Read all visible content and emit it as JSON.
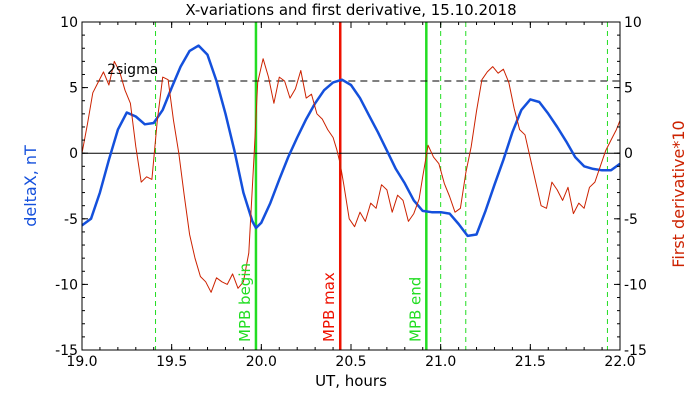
{
  "chart_data": {
    "type": "line",
    "title": "X-variations and first derivative, 15.10.2018",
    "xlabel": "UT, hours",
    "ylabel_left": "deltaX, nT",
    "ylabel_right": "First derivative*10",
    "xlim": [
      19.0,
      22.0
    ],
    "ylim_left": [
      -15,
      10
    ],
    "ylim_right": [
      -15,
      10
    ],
    "x_ticks": [
      19.0,
      19.5,
      20.0,
      20.5,
      21.0,
      21.5,
      22.0
    ],
    "x_tick_labels": [
      "19.0",
      "19.5",
      "20.0",
      "20.5",
      "21.0",
      "21.5",
      "22.0"
    ],
    "y_ticks": [
      10,
      5,
      0,
      -5,
      -10,
      -15
    ],
    "y_tick_labels": [
      "10",
      "5",
      "0",
      "-5",
      "-10",
      "-15"
    ],
    "grid": false,
    "colors": {
      "deltaX": "#1450dc",
      "derivative": "#cc2200",
      "mpb_begin": "#22dd22",
      "mpb_max": "#ee1100",
      "mpb_end": "#22dd22",
      "dashed_markers": "#22dd22",
      "zero_line": "#000000",
      "sigma_line": "#000000"
    },
    "sigma_label": "2sigma",
    "sigma_level": 5.5,
    "zero_level": 0,
    "markers": [
      {
        "label": "MPB begin",
        "x": 19.97,
        "color": "#22dd22"
      },
      {
        "label": "MPB max",
        "x": 20.44,
        "color": "#ee1100"
      },
      {
        "label": "MPB end",
        "x": 20.92,
        "color": "#22dd22"
      }
    ],
    "dashed_verticals": [
      19.41,
      21.0,
      21.14,
      21.93
    ],
    "series": [
      {
        "key": "deltaX",
        "axis": "left",
        "x": [
          19.0,
          19.05,
          19.1,
          19.15,
          19.2,
          19.25,
          19.3,
          19.35,
          19.4,
          19.45,
          19.5,
          19.55,
          19.6,
          19.65,
          19.7,
          19.75,
          19.8,
          19.85,
          19.9,
          19.95,
          19.97,
          20.0,
          20.05,
          20.1,
          20.15,
          20.2,
          20.25,
          20.3,
          20.35,
          20.4,
          20.45,
          20.5,
          20.55,
          20.6,
          20.65,
          20.7,
          20.75,
          20.8,
          20.85,
          20.9,
          20.95,
          21.0,
          21.05,
          21.1,
          21.15,
          21.2,
          21.25,
          21.3,
          21.35,
          21.4,
          21.45,
          21.5,
          21.55,
          21.6,
          21.65,
          21.7,
          21.75,
          21.8,
          21.85,
          21.9,
          21.95,
          22.0
        ],
        "y": [
          -5.5,
          -5.0,
          -3.0,
          -0.5,
          1.8,
          3.1,
          2.8,
          2.2,
          2.3,
          3.3,
          5.0,
          6.6,
          7.8,
          8.2,
          7.5,
          5.5,
          3.0,
          0.2,
          -3.0,
          -5.2,
          -5.7,
          -5.3,
          -3.8,
          -2.0,
          -0.3,
          1.2,
          2.6,
          3.8,
          4.8,
          5.4,
          5.6,
          5.2,
          4.2,
          2.9,
          1.6,
          0.2,
          -1.2,
          -2.3,
          -3.6,
          -4.4,
          -4.5,
          -4.5,
          -4.6,
          -5.4,
          -6.3,
          -6.2,
          -4.4,
          -2.4,
          -0.5,
          1.6,
          3.3,
          4.1,
          3.9,
          3.0,
          2.0,
          0.9,
          -0.3,
          -1.0,
          -1.2,
          -1.3,
          -1.3,
          -0.8
        ]
      },
      {
        "key": "derivative",
        "axis": "right",
        "x": [
          19.0,
          19.03,
          19.06,
          19.09,
          19.12,
          19.15,
          19.18,
          19.21,
          19.24,
          19.27,
          19.3,
          19.33,
          19.36,
          19.39,
          19.42,
          19.45,
          19.48,
          19.51,
          19.54,
          19.57,
          19.6,
          19.63,
          19.66,
          19.69,
          19.72,
          19.75,
          19.78,
          19.81,
          19.84,
          19.87,
          19.9,
          19.93,
          19.96,
          19.98,
          20.01,
          20.04,
          20.07,
          20.1,
          20.13,
          20.16,
          20.19,
          20.22,
          20.25,
          20.28,
          20.31,
          20.34,
          20.37,
          20.4,
          20.42,
          20.44,
          20.46,
          20.49,
          20.52,
          20.55,
          20.58,
          20.61,
          20.64,
          20.67,
          20.7,
          20.73,
          20.76,
          20.79,
          20.82,
          20.85,
          20.88,
          20.9,
          20.93,
          20.96,
          20.99,
          21.02,
          21.05,
          21.08,
          21.11,
          21.14,
          21.17,
          21.2,
          21.23,
          21.26,
          21.29,
          21.32,
          21.35,
          21.38,
          21.41,
          21.44,
          21.47,
          21.5,
          21.53,
          21.56,
          21.59,
          21.62,
          21.65,
          21.68,
          21.71,
          21.74,
          21.77,
          21.8,
          21.83,
          21.86,
          21.89,
          21.92,
          21.95,
          21.98,
          22.0
        ],
        "y": [
          0.0,
          2.2,
          4.6,
          5.4,
          6.2,
          5.2,
          7.0,
          6.2,
          4.8,
          3.8,
          0.5,
          -2.2,
          -1.8,
          -2.0,
          2.5,
          5.8,
          5.6,
          2.5,
          0.0,
          -3.2,
          -6.2,
          -8.0,
          -9.4,
          -9.8,
          -10.6,
          -9.5,
          -9.8,
          -10.0,
          -9.2,
          -10.3,
          -9.8,
          -7.6,
          0.0,
          5.4,
          7.2,
          5.8,
          3.8,
          5.8,
          5.5,
          4.2,
          4.9,
          6.3,
          4.2,
          4.5,
          3.0,
          2.6,
          1.8,
          1.2,
          0.3,
          -0.8,
          -2.4,
          -5.0,
          -5.6,
          -4.5,
          -5.2,
          -3.8,
          -4.2,
          -2.4,
          -2.8,
          -4.5,
          -3.2,
          -3.6,
          -5.2,
          -4.6,
          -3.5,
          -1.8,
          0.6,
          -0.3,
          -0.8,
          -2.3,
          -3.3,
          -4.5,
          -4.2,
          -1.5,
          0.5,
          3.2,
          5.6,
          6.2,
          6.6,
          6.1,
          6.4,
          5.4,
          3.4,
          1.8,
          1.4,
          -0.4,
          -2.2,
          -4.0,
          -4.2,
          -2.2,
          -2.8,
          -3.6,
          -2.6,
          -4.6,
          -3.8,
          -4.2,
          -2.6,
          -2.2,
          -1.0,
          0.2,
          1.0,
          1.8,
          2.5
        ]
      }
    ]
  }
}
